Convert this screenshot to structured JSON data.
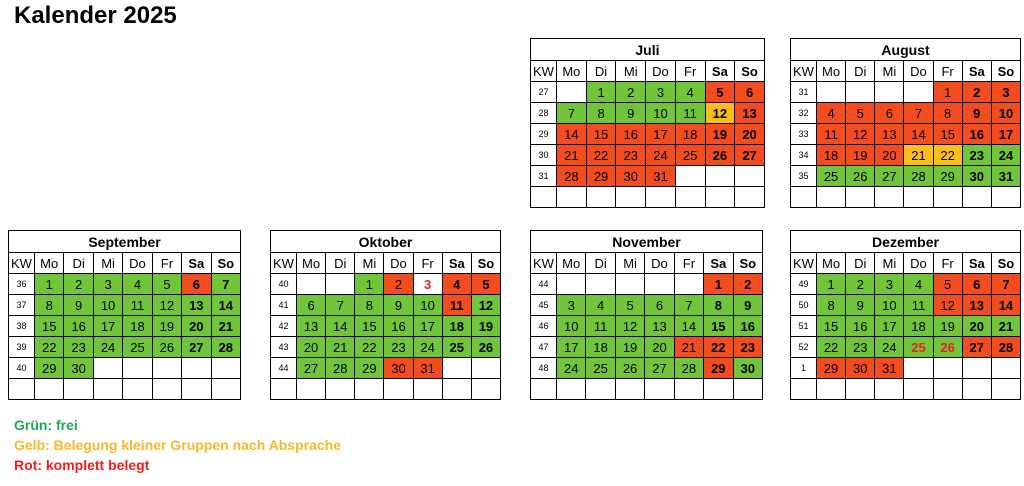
{
  "title": "Kalender 2025",
  "weekday_header": [
    "KW",
    "Mo",
    "Di",
    "Mi",
    "Do",
    "Fr",
    "Sa",
    "So"
  ],
  "colors": {
    "green": "#70c53a",
    "red": "#f24c1f",
    "yellow": "#fbbd1c",
    "legend_green": "#23a65a",
    "legend_yellow": "#f7b928",
    "legend_red": "#ee1c1c"
  },
  "months": [
    {
      "name": "Juli",
      "weeks": [
        {
          "kw": "27",
          "days": [
            "",
            "1",
            "2",
            "3",
            "4",
            "5",
            "6"
          ],
          "status": [
            "",
            "g",
            "g",
            "g",
            "g",
            "r",
            "r"
          ]
        },
        {
          "kw": "28",
          "days": [
            "7",
            "8",
            "9",
            "10",
            "11",
            "12",
            "13"
          ],
          "status": [
            "g",
            "g",
            "g",
            "g",
            "g",
            "y",
            "r"
          ]
        },
        {
          "kw": "29",
          "days": [
            "14",
            "15",
            "16",
            "17",
            "18",
            "19",
            "20"
          ],
          "status": [
            "r",
            "r",
            "r",
            "r",
            "r",
            "r",
            "r"
          ]
        },
        {
          "kw": "30",
          "days": [
            "21",
            "22",
            "23",
            "24",
            "25",
            "26",
            "27"
          ],
          "status": [
            "r",
            "r",
            "r",
            "r",
            "r",
            "r",
            "r"
          ]
        },
        {
          "kw": "31",
          "days": [
            "28",
            "29",
            "30",
            "31",
            "",
            "",
            ""
          ],
          "status": [
            "r",
            "r",
            "r",
            "r",
            "",
            "",
            ""
          ]
        },
        {
          "kw": "",
          "days": [
            "",
            "",
            "",
            "",
            "",
            "",
            ""
          ],
          "status": [
            "",
            "",
            "",
            "",
            "",
            "",
            ""
          ]
        }
      ]
    },
    {
      "name": "August",
      "weeks": [
        {
          "kw": "31",
          "days": [
            "",
            "",
            "",
            "",
            "1",
            "2",
            "3"
          ],
          "status": [
            "",
            "",
            "",
            "",
            "r",
            "r",
            "r"
          ]
        },
        {
          "kw": "32",
          "days": [
            "4",
            "5",
            "6",
            "7",
            "8",
            "9",
            "10"
          ],
          "status": [
            "r",
            "r",
            "r",
            "r",
            "r",
            "r",
            "r"
          ]
        },
        {
          "kw": "33",
          "days": [
            "11",
            "12",
            "13",
            "14",
            "15",
            "16",
            "17"
          ],
          "status": [
            "r",
            "r",
            "r",
            "r",
            "r",
            "r",
            "r"
          ]
        },
        {
          "kw": "34",
          "days": [
            "18",
            "19",
            "20",
            "21",
            "22",
            "23",
            "24"
          ],
          "status": [
            "r",
            "r",
            "r",
            "y",
            "y",
            "g",
            "g"
          ]
        },
        {
          "kw": "35",
          "days": [
            "25",
            "26",
            "27",
            "28",
            "29",
            "30",
            "31"
          ],
          "status": [
            "g",
            "g",
            "g",
            "g",
            "g",
            "g",
            "g"
          ]
        },
        {
          "kw": "",
          "days": [
            "",
            "",
            "",
            "",
            "",
            "",
            ""
          ],
          "status": [
            "",
            "",
            "",
            "",
            "",
            "",
            ""
          ]
        }
      ]
    },
    {
      "name": "September",
      "weeks": [
        {
          "kw": "36",
          "days": [
            "1",
            "2",
            "3",
            "4",
            "5",
            "6",
            "7"
          ],
          "status": [
            "g",
            "g",
            "g",
            "g",
            "g",
            "r",
            "g"
          ]
        },
        {
          "kw": "37",
          "days": [
            "8",
            "9",
            "10",
            "11",
            "12",
            "13",
            "14"
          ],
          "status": [
            "g",
            "g",
            "g",
            "g",
            "g",
            "g",
            "g"
          ]
        },
        {
          "kw": "38",
          "days": [
            "15",
            "16",
            "17",
            "18",
            "19",
            "20",
            "21"
          ],
          "status": [
            "g",
            "g",
            "g",
            "g",
            "g",
            "g",
            "g"
          ]
        },
        {
          "kw": "39",
          "days": [
            "22",
            "23",
            "24",
            "25",
            "26",
            "27",
            "28"
          ],
          "status": [
            "g",
            "g",
            "g",
            "g",
            "g",
            "g",
            "g"
          ]
        },
        {
          "kw": "40",
          "days": [
            "29",
            "30",
            "",
            "",
            "",
            "",
            ""
          ],
          "status": [
            "g",
            "g",
            "",
            "",
            "",
            "",
            ""
          ]
        },
        {
          "kw": "",
          "days": [
            "",
            "",
            "",
            "",
            "",
            "",
            ""
          ],
          "status": [
            "",
            "",
            "",
            "",
            "",
            "",
            ""
          ]
        }
      ]
    },
    {
      "name": "Oktober",
      "weeks": [
        {
          "kw": "40",
          "days": [
            "",
            "",
            "1",
            "2",
            "3",
            "4",
            "5"
          ],
          "status": [
            "",
            "",
            "g",
            "r",
            "rt",
            "r",
            "r"
          ]
        },
        {
          "kw": "41",
          "days": [
            "6",
            "7",
            "8",
            "9",
            "10",
            "11",
            "12"
          ],
          "status": [
            "g",
            "g",
            "g",
            "g",
            "g",
            "r",
            "g"
          ]
        },
        {
          "kw": "42",
          "days": [
            "13",
            "14",
            "15",
            "16",
            "17",
            "18",
            "19"
          ],
          "status": [
            "g",
            "g",
            "g",
            "g",
            "g",
            "g",
            "g"
          ]
        },
        {
          "kw": "43",
          "days": [
            "20",
            "21",
            "22",
            "23",
            "24",
            "25",
            "26"
          ],
          "status": [
            "g",
            "g",
            "g",
            "g",
            "g",
            "g",
            "g"
          ]
        },
        {
          "kw": "44",
          "days": [
            "27",
            "28",
            "29",
            "30",
            "31",
            "",
            ""
          ],
          "status": [
            "g",
            "g",
            "g",
            "r",
            "r",
            "",
            ""
          ]
        },
        {
          "kw": "",
          "days": [
            "",
            "",
            "",
            "",
            "",
            "",
            ""
          ],
          "status": [
            "",
            "",
            "",
            "",
            "",
            "",
            ""
          ]
        }
      ]
    },
    {
      "name": "November",
      "weeks": [
        {
          "kw": "44",
          "days": [
            "",
            "",
            "",
            "",
            "",
            "1",
            "2"
          ],
          "status": [
            "",
            "",
            "",
            "",
            "",
            "r",
            "r"
          ]
        },
        {
          "kw": "45",
          "days": [
            "3",
            "4",
            "5",
            "6",
            "7",
            "8",
            "9"
          ],
          "status": [
            "g",
            "g",
            "g",
            "g",
            "g",
            "g",
            "g"
          ]
        },
        {
          "kw": "46",
          "days": [
            "10",
            "11",
            "12",
            "13",
            "14",
            "15",
            "16"
          ],
          "status": [
            "g",
            "g",
            "g",
            "g",
            "g",
            "g",
            "g"
          ]
        },
        {
          "kw": "47",
          "days": [
            "17",
            "18",
            "19",
            "20",
            "21",
            "22",
            "23"
          ],
          "status": [
            "g",
            "g",
            "g",
            "g",
            "r",
            "r",
            "r"
          ]
        },
        {
          "kw": "48",
          "days": [
            "24",
            "25",
            "26",
            "27",
            "28",
            "29",
            "30"
          ],
          "status": [
            "g",
            "g",
            "g",
            "g",
            "g",
            "r",
            "g"
          ]
        },
        {
          "kw": "",
          "days": [
            "",
            "",
            "",
            "",
            "",
            "",
            ""
          ],
          "status": [
            "",
            "",
            "",
            "",
            "",
            "",
            ""
          ]
        }
      ]
    },
    {
      "name": "Dezember",
      "weeks": [
        {
          "kw": "49",
          "days": [
            "1",
            "2",
            "3",
            "4",
            "5",
            "6",
            "7"
          ],
          "status": [
            "g",
            "g",
            "g",
            "g",
            "r",
            "r",
            "r"
          ]
        },
        {
          "kw": "50",
          "days": [
            "8",
            "9",
            "10",
            "11",
            "12",
            "13",
            "14"
          ],
          "status": [
            "g",
            "g",
            "g",
            "g",
            "r",
            "r",
            "r"
          ]
        },
        {
          "kw": "51",
          "days": [
            "15",
            "16",
            "17",
            "18",
            "19",
            "20",
            "21"
          ],
          "status": [
            "g",
            "g",
            "g",
            "g",
            "g",
            "g",
            "g"
          ]
        },
        {
          "kw": "52",
          "days": [
            "22",
            "23",
            "24",
            "25",
            "26",
            "27",
            "28"
          ],
          "status": [
            "g",
            "g",
            "g",
            "gt",
            "gt",
            "r",
            "r"
          ]
        },
        {
          "kw": "1",
          "days": [
            "29",
            "30",
            "31",
            "",
            "",
            "",
            ""
          ],
          "status": [
            "r",
            "r",
            "r",
            "",
            "",
            "",
            ""
          ]
        },
        {
          "kw": "",
          "days": [
            "",
            "",
            "",
            "",
            "",
            "",
            ""
          ],
          "status": [
            "",
            "",
            "",
            "",
            "",
            "",
            ""
          ]
        }
      ]
    }
  ],
  "legend": [
    {
      "text": "Grün: frei",
      "color": "#23a65a"
    },
    {
      "text": "Gelb: Belegung kleiner Gruppen nach Absprache",
      "color": "#f7b928"
    },
    {
      "text": "Rot: komplett belegt",
      "color": "#ee1c1c"
    }
  ]
}
